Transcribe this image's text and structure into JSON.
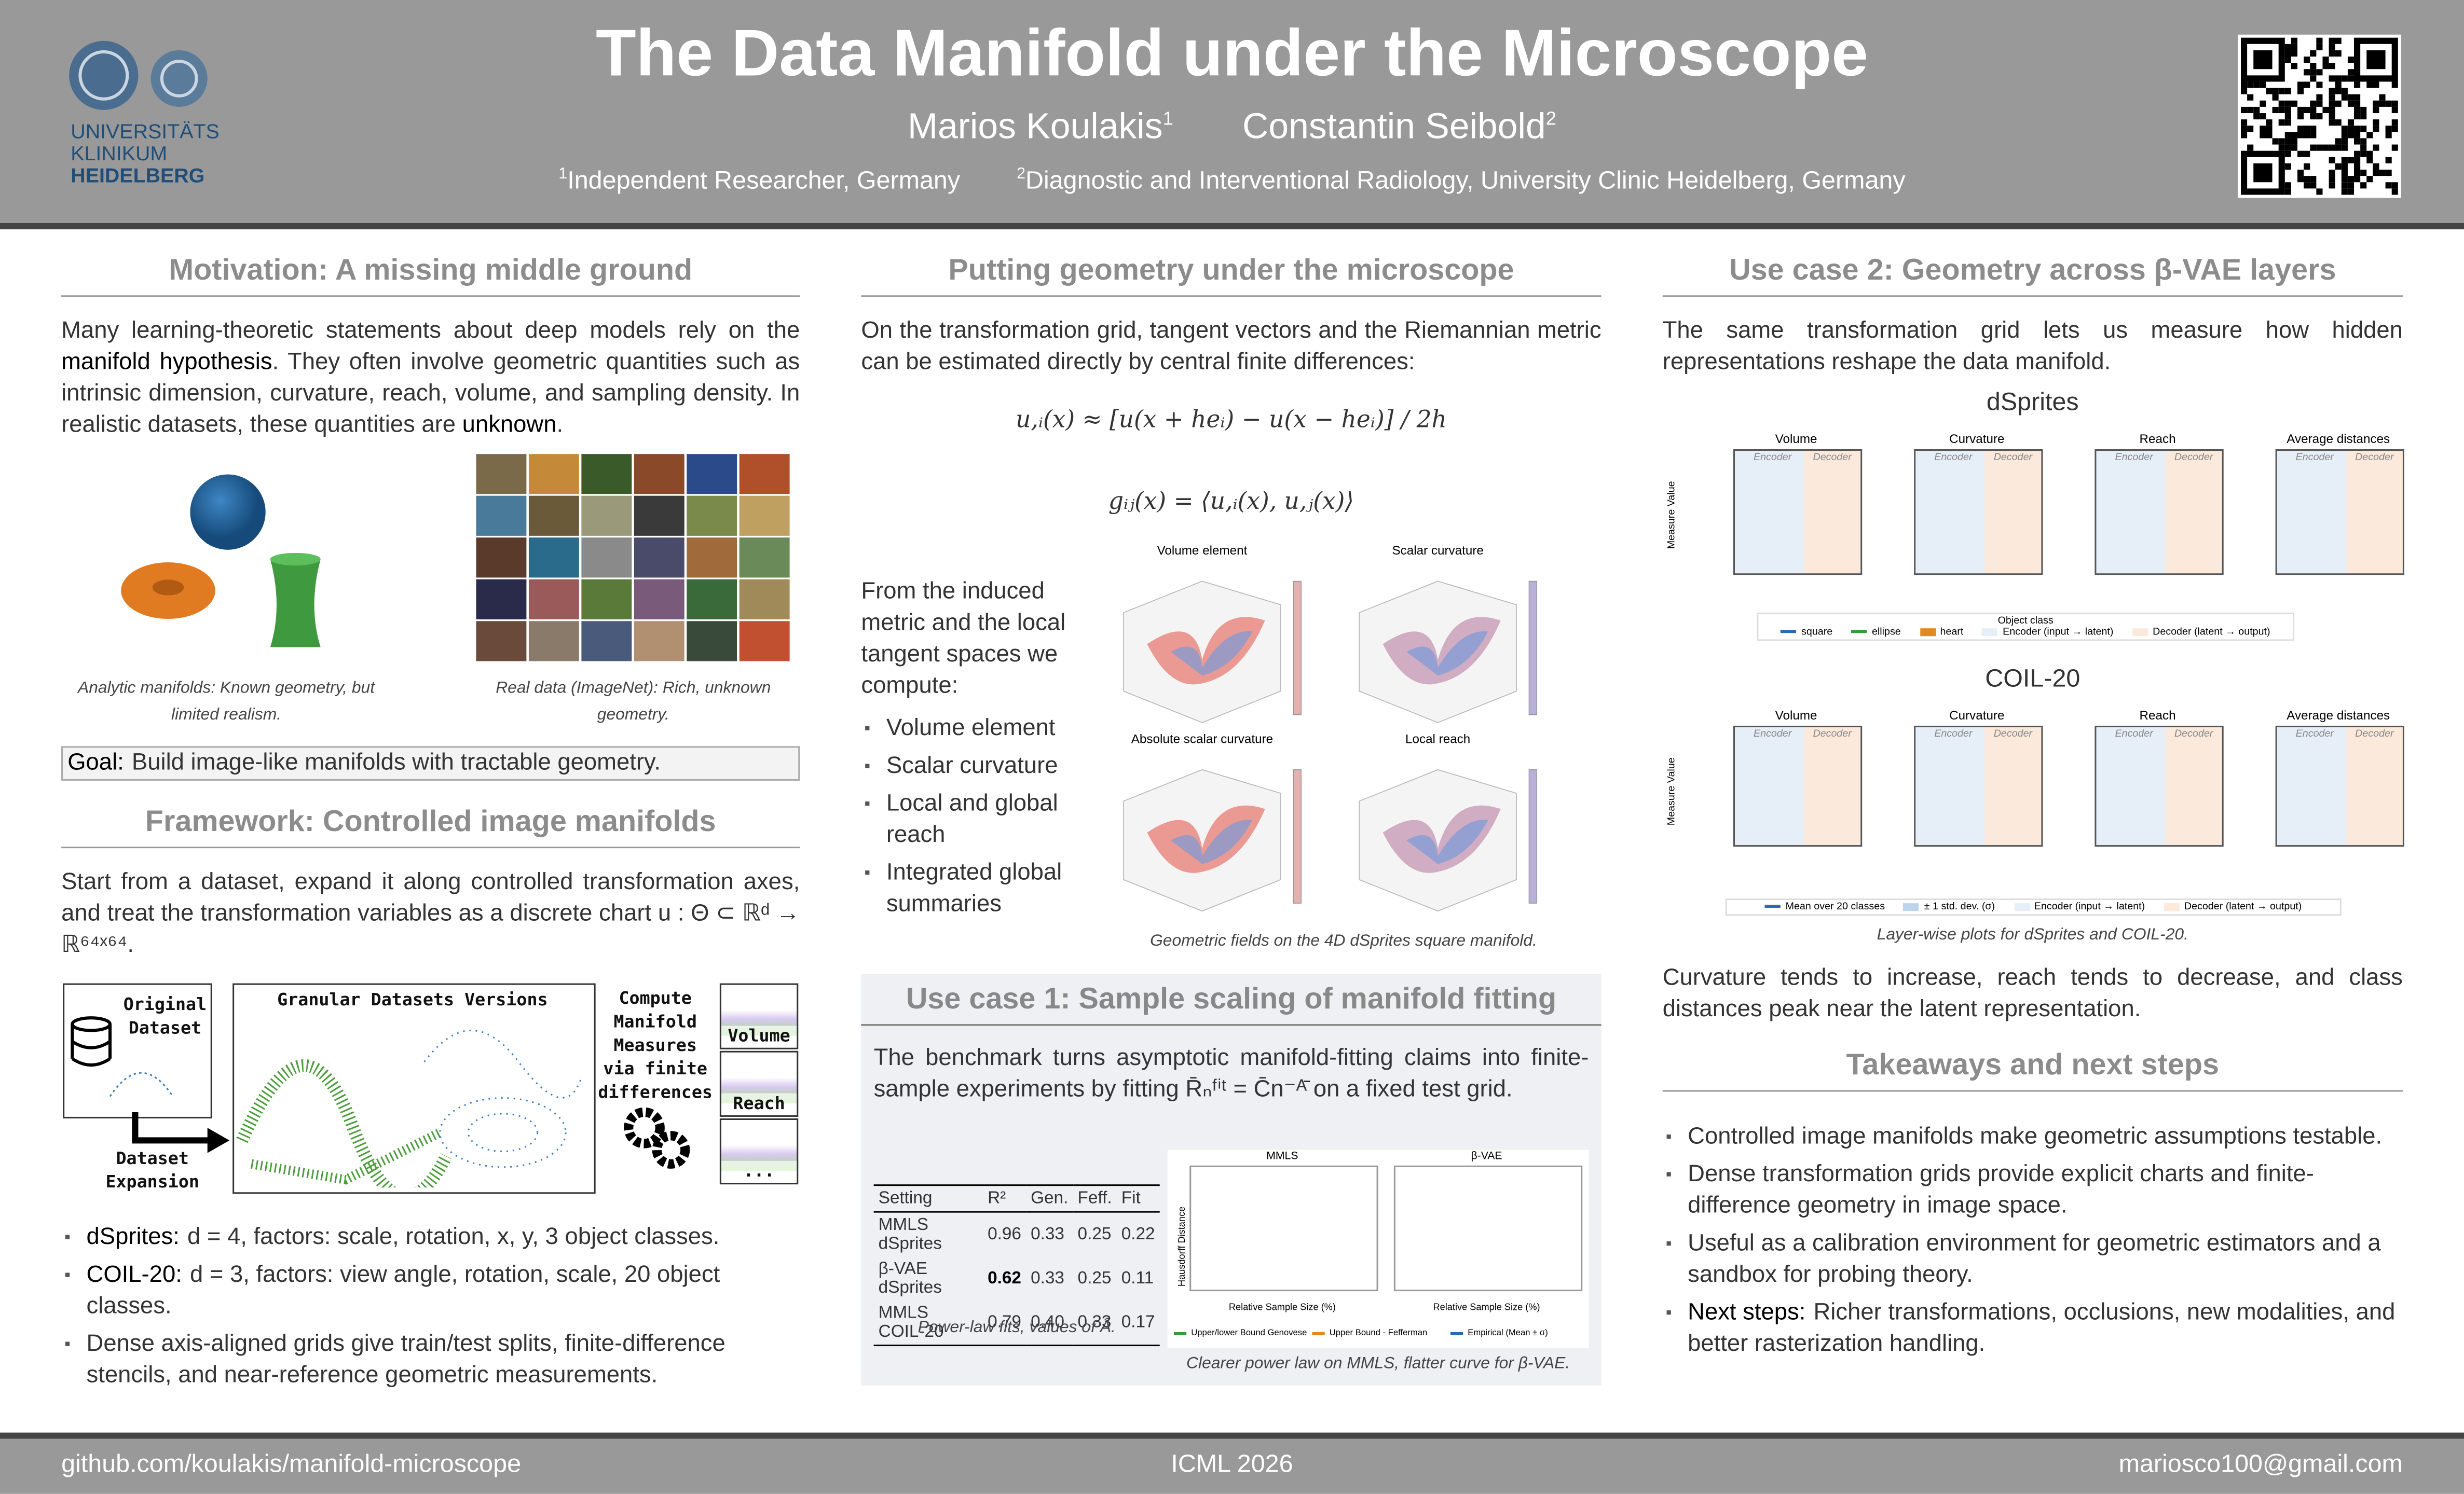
{
  "header": {
    "title": "The Data Manifold under the Microscope",
    "authors": [
      {
        "name": "Marios Koulakis",
        "sup": "1"
      },
      {
        "name": "Constantin Seibold",
        "sup": "2"
      }
    ],
    "affiliations": [
      {
        "sup": "1",
        "text": "Independent Researcher, Germany"
      },
      {
        "sup": "2",
        "text": "Diagnostic and Interventional Radiology, University Clinic Heidelberg, Germany"
      }
    ],
    "logo": [
      "UNIVERSITÄTS",
      "KLINIKUM",
      "HEIDELBERG"
    ]
  },
  "motivation": {
    "heading": "Motivation: A missing middle ground",
    "body": [
      "Many learning-theoretic statements about deep models rely on the ",
      "manifold hypothesis",
      ". They often involve geometric quantities such as intrinsic dimension, curvature, reach, volume, and sampling density. In realistic datasets, these quantities are ",
      "unknown",
      "."
    ],
    "captions": [
      "Analytic manifolds: Known geometry, but limited realism.",
      "Real data (ImageNet): Rich, unknown geometry."
    ],
    "goal_label": "Goal:",
    "goal": "Build image-like manifolds with tractable geometry."
  },
  "framework": {
    "heading": "Framework: Controlled image manifolds",
    "body": "Start from a dataset, expand it along controlled transformation axes, and treat the transformation variables as a discrete chart u : Θ ⊂ ℝᵈ → ℝ⁶⁴ˣ⁶⁴.",
    "diagram": {
      "original": "Original Dataset",
      "granular": "Granular Datasets Versions",
      "compute": "Compute Manifold Measures via finite differences",
      "measures": [
        "Volume",
        "Reach",
        "..."
      ],
      "expansion": "Dataset Expansion"
    },
    "bullets": [
      {
        "label": "dSprites:",
        "text": "d = 4, factors: scale, rotation, x, y, 3 object classes."
      },
      {
        "label": "COIL-20:",
        "text": "d = 3, factors: view angle, rotation, scale, 20 object classes."
      },
      {
        "text": "Dense axis-aligned grids give train/test splits, finite-difference stencils, and near-reference geometric measurements."
      }
    ]
  },
  "microscope": {
    "heading": "Putting geometry under the microscope",
    "body": "On the transformation grid, tangent vectors and the Riemannian metric can be estimated directly by central finite differences:",
    "equations": [
      "u,ᵢ(x) ≈ [u(x + heᵢ) − u(x − heᵢ)] / 2h",
      "gᵢⱼ(x) = ⟨u,ᵢ(x), u,ⱼ(x)⟩"
    ],
    "lead": "From the induced metric and the local tangent spaces we compute:",
    "bullets": [
      "Volume element",
      "Scalar curvature",
      "Local and global reach",
      "Integrated global summaries"
    ],
    "panels": [
      "Volume element",
      "Scalar curvature",
      "Absolute scalar curvature",
      "Local reach"
    ],
    "caption": "Geometric fields on the 4D dSprites square manifold."
  },
  "usecase1": {
    "heading": "Use case 1: Sample scaling of manifold fitting",
    "body": "The benchmark turns asymptotic manifold-fitting claims into finite-sample experiments by fitting R̄ₙᶠⁱᵗ = C̄n⁻ᴬ̄ on a fixed test grid.",
    "table": {
      "columns": [
        "Setting",
        "R²",
        "Gen.",
        "Feff.",
        "Fit"
      ],
      "rows": [
        [
          "MMLS dSprites",
          "0.96",
          "0.33",
          "0.25",
          "0.22"
        ],
        [
          "β-VAE dSprites",
          "0.62",
          "0.33",
          "0.25",
          "0.11"
        ],
        [
          "MMLS COIL-20",
          "0.79",
          "0.40",
          "0.33",
          "0.17"
        ]
      ]
    },
    "table_caption": "Power-law fits, values of Â.",
    "plot_titles": [
      "MMLS",
      "β-VAE"
    ],
    "plot_ylabel": "Hausdorff Distance",
    "plot_xlabel": "Relative Sample Size (%)",
    "plot_legend": [
      "Upper/lower Bound Genovese",
      "Upper Bound - Fefferman",
      "Empirical (Mean ± σ)"
    ],
    "plot_caption": "Clearer power law on MMLS, flatter curve for β-VAE."
  },
  "usecase2": {
    "heading": "Use case 2: Geometry across β-VAE layers",
    "body": "The same transformation grid lets us measure how hidden representations reshape the data manifold.",
    "datasets": [
      "dSprites",
      "COIL-20"
    ],
    "panels": [
      "Volume",
      "Curvature",
      "Reach",
      "Average distances"
    ],
    "encoder": "Encoder",
    "decoder": "Decoder",
    "ylabel": "Measure Value",
    "legend_title": "Object class",
    "legend1": [
      "square",
      "ellipse",
      "heart",
      "Encoder (input → latent)",
      "Decoder (latent → output)"
    ],
    "legend2": [
      "Mean over 20 classes",
      "± 1 std. dev. (σ)",
      "Encoder (input → latent)",
      "Decoder (latent → output)"
    ],
    "caption": "Layer-wise plots for dSprites and COIL-20.",
    "conclusion": "Curvature tends to increase, reach tends to decrease, and class distances peak near the latent representation."
  },
  "takeaways": {
    "heading": "Takeaways and next steps",
    "bullets": [
      {
        "text": "Controlled image manifolds make geometric assumptions testable."
      },
      {
        "text": "Dense transformation grids provide explicit charts and finite-difference geometry in image space."
      },
      {
        "text": "Useful as a calibration environment for geometric estimators and a sandbox for probing theory."
      },
      {
        "label": "Next steps:",
        "text": "Richer transformations, occlusions, new modalities, and better rasterization handling."
      }
    ]
  },
  "footer": [
    "github.com/koulakis/manifold-microscope",
    "ICML 2026",
    "mariosco100@gmail.com"
  ]
}
